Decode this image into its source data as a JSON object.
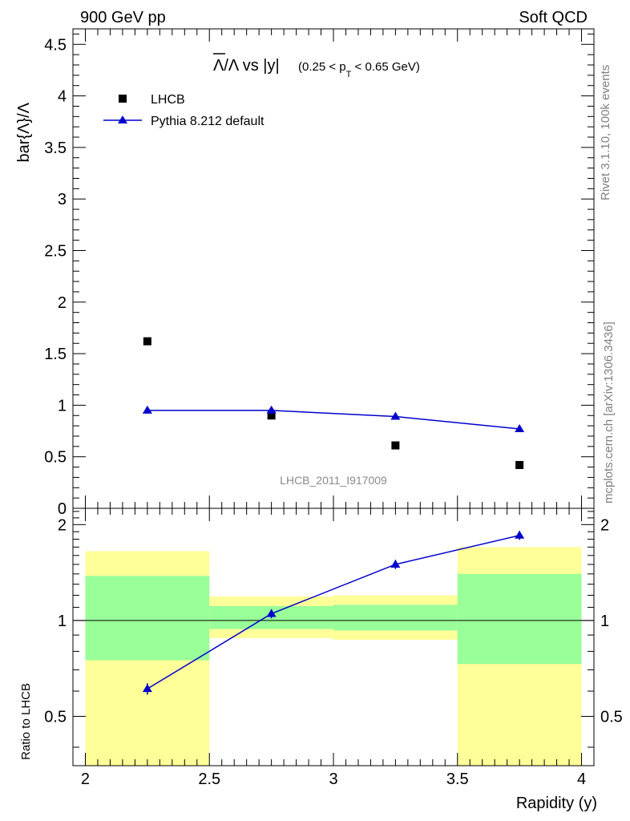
{
  "header": {
    "left": "900 GeV pp",
    "right": "Soft QCD"
  },
  "side_labels": {
    "rivet": "Rivet 3.1.10,  100k events",
    "mcplots": "mcplots.cern.ch [arXiv:1306.3436]"
  },
  "chart_data": [
    {
      "type": "scatter",
      "panel": "main",
      "title_main": "Λ/Λ vs |y|",
      "title_sub_pre": "(0.25 < p",
      "title_sub_sub": "T",
      "title_sub_post": " < 0.65 GeV)",
      "ylabel": "bar{Λ}/Λ",
      "watermark": "LHCB_2011_I917009",
      "xlim": [
        1.95,
        4.05
      ],
      "ylim": [
        0,
        4.65
      ],
      "yticks": [
        {
          "v": 0,
          "label": "0"
        },
        {
          "v": 0.5,
          "label": "0.5"
        },
        {
          "v": 1,
          "label": "1"
        },
        {
          "v": 1.5,
          "label": "1.5"
        },
        {
          "v": 2,
          "label": "2"
        },
        {
          "v": 2.5,
          "label": "2.5"
        },
        {
          "v": 3,
          "label": "3"
        },
        {
          "v": 3.5,
          "label": "3.5"
        },
        {
          "v": 4,
          "label": "4"
        },
        {
          "v": 4.5,
          "label": "4.5"
        }
      ],
      "legend": [
        "LHCB",
        "Pythia 8.212 default"
      ],
      "series": [
        {
          "name": "LHCB",
          "color": "#000000",
          "marker": "square",
          "x": [
            2.25,
            2.75,
            3.25,
            3.75
          ],
          "y": [
            1.62,
            0.9,
            0.61,
            0.42
          ]
        },
        {
          "name": "Pythia 8.212 default",
          "color": "#0000cc",
          "marker": "triangle",
          "x": [
            2.25,
            2.75,
            3.25,
            3.75
          ],
          "y": [
            0.95,
            0.95,
            0.89,
            0.77
          ],
          "err": [
            0.03,
            0.035,
            0.03,
            0.03
          ]
        }
      ]
    },
    {
      "type": "scatter",
      "panel": "ratio",
      "ylabel": "Ratio to LHCB",
      "xlabel": "Rapidity (y)",
      "xlim": [
        1.95,
        4.05
      ],
      "ylim": [
        0.35,
        2.25
      ],
      "xticks": [
        {
          "v": 2,
          "label": "2"
        },
        {
          "v": 2.5,
          "label": "2.5"
        },
        {
          "v": 3,
          "label": "3"
        },
        {
          "v": 3.5,
          "label": "3.5"
        },
        {
          "v": 4,
          "label": "4"
        }
      ],
      "yticks": [
        {
          "v": 0.5,
          "label": "0.5"
        },
        {
          "v": 1,
          "label": "1"
        },
        {
          "v": 2,
          "label": "2"
        }
      ],
      "bands": [
        {
          "x0": 2.0,
          "x1": 2.5,
          "yellow": [
            0.35,
            1.65
          ],
          "green": [
            0.75,
            1.38
          ]
        },
        {
          "x0": 2.5,
          "x1": 3.0,
          "yellow": [
            0.88,
            1.19
          ],
          "green": [
            0.94,
            1.11
          ]
        },
        {
          "x0": 3.0,
          "x1": 3.5,
          "yellow": [
            0.87,
            1.2
          ],
          "green": [
            0.93,
            1.12
          ]
        },
        {
          "x0": 3.5,
          "x1": 4.0,
          "yellow": [
            0.35,
            1.7
          ],
          "green": [
            0.73,
            1.4
          ]
        }
      ],
      "band_colors": {
        "yellow": "#ffff99",
        "green": "#99ff99"
      },
      "reference": 1,
      "series": [
        {
          "name": "Pythia 8.212 default",
          "color": "#0000cc",
          "marker": "triangle",
          "x": [
            2.25,
            2.75,
            3.25,
            3.75
          ],
          "y": [
            0.61,
            1.05,
            1.5,
            1.85
          ],
          "err": [
            0.025,
            0.035,
            0.05,
            0.06
          ]
        }
      ]
    }
  ]
}
